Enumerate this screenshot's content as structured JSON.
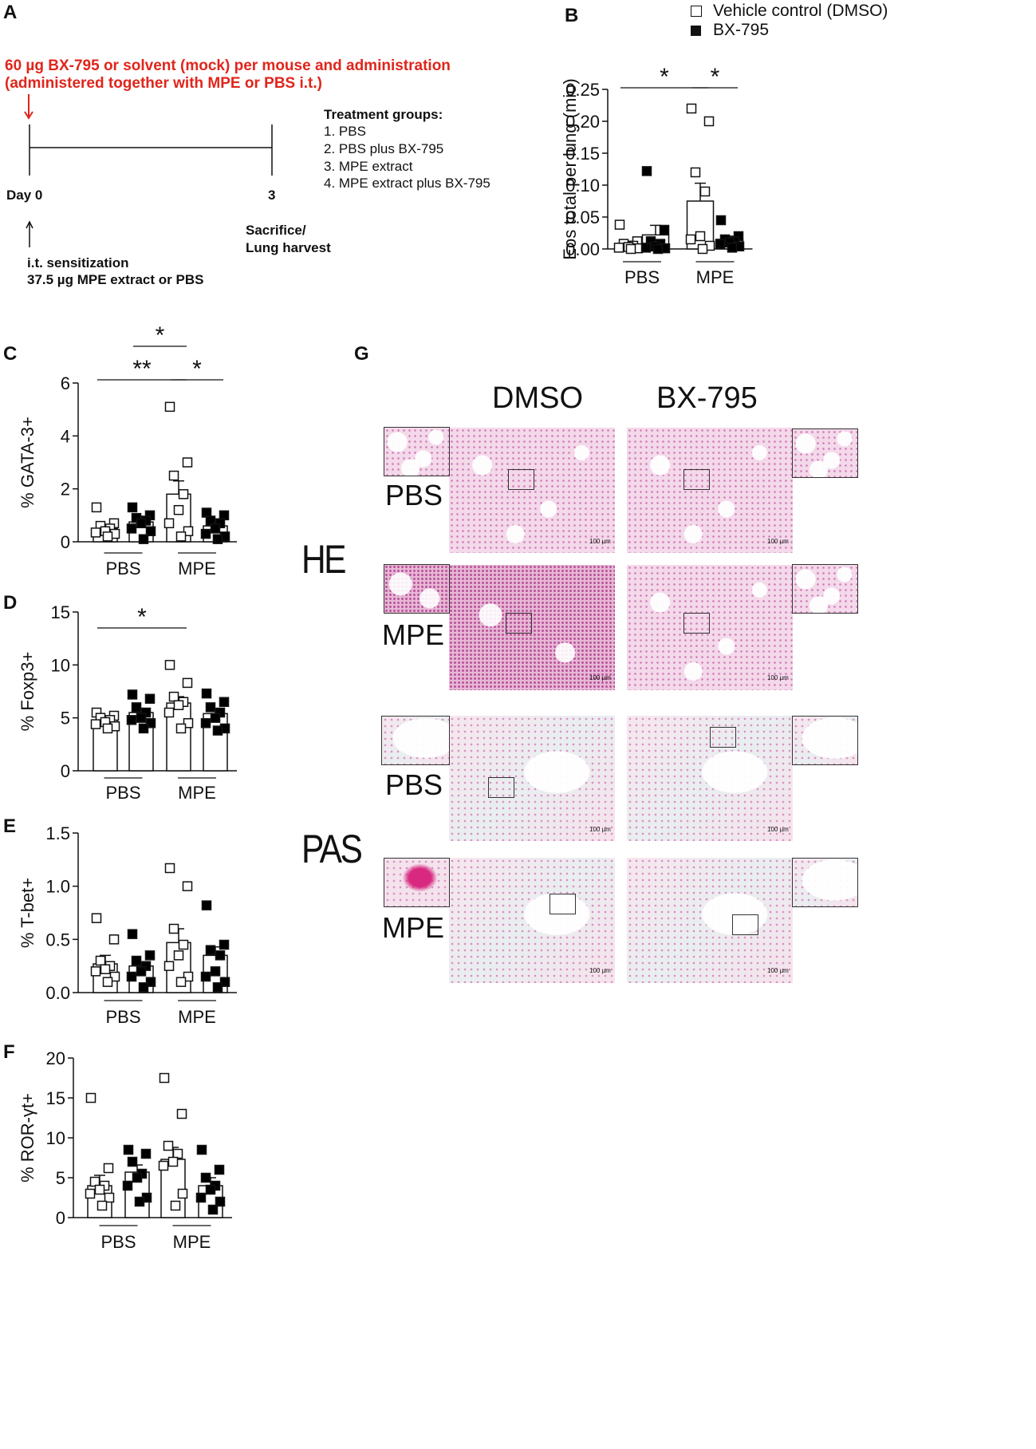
{
  "panel_a": {
    "letter": "A",
    "red_line1": "60 µg BX-795 or solvent (mock) per mouse and administration",
    "red_line2": "(administered together with MPE or PBS i.t.)",
    "day0": "Day 0",
    "day3": "3",
    "sensitization_line1": "i.t. sensitization",
    "sensitization_line2": "37.5 µg MPE extract or PBS",
    "sacrifice_line1": "Sacrifice/",
    "sacrifice_line2": "Lung harvest",
    "groups_title": "Treatment groups:",
    "groups": [
      "1. PBS",
      "2. PBS plus BX-795",
      "3. MPE extract",
      "4. MPE extract plus BX-795"
    ]
  },
  "legend": {
    "vehicle": "Vehicle control (DMSO)",
    "bx": "BX-795"
  },
  "colors": {
    "red": "#e0251b",
    "filled": "#000000",
    "open": "#ffffff"
  },
  "chart_data": [
    {
      "panel": "B",
      "type": "bar",
      "ylabel": "Eos total per lung (mio)",
      "ylim": [
        0,
        0.25
      ],
      "yticks": [
        "0.00",
        "0.05",
        "0.10",
        "0.15",
        "0.20",
        "0.25"
      ],
      "groups": [
        "PBS",
        "MPE"
      ],
      "series": [
        {
          "name": "Vehicle control (DMSO)",
          "values": [
            0.008,
            0.075
          ],
          "sem": [
            0.004,
            0.028
          ]
        },
        {
          "name": "BX-795",
          "values": [
            0.022,
            0.015
          ],
          "sem": [
            0.015,
            0.005
          ]
        }
      ],
      "points": [
        [
          0.038,
          0.012,
          0.008,
          0.005,
          0.003,
          0.002,
          0.001,
          0.0
        ],
        [
          0.122,
          0.03,
          0.012,
          0.008,
          0.004,
          0.002,
          0.001,
          0.0
        ],
        [
          0.22,
          0.2,
          0.12,
          0.09,
          0.02,
          0.015,
          0.005,
          0.0
        ],
        [
          0.045,
          0.02,
          0.015,
          0.012,
          0.01,
          0.008,
          0.004,
          0.002
        ]
      ],
      "significance": [
        {
          "from": 0,
          "to": 2,
          "label": "*"
        },
        {
          "from": 2,
          "to": 3,
          "label": "*"
        }
      ]
    },
    {
      "panel": "C",
      "type": "bar",
      "ylabel": "% GATA-3+",
      "ylim": [
        0,
        6
      ],
      "yticks": [
        "0",
        "2",
        "4",
        "6"
      ],
      "groups": [
        "PBS",
        "MPE"
      ],
      "series": [
        {
          "name": "Vehicle control (DMSO)",
          "values": [
            0.5,
            1.8
          ],
          "sem": [
            0.12,
            0.5
          ]
        },
        {
          "name": "BX-795",
          "values": [
            0.75,
            0.6
          ],
          "sem": [
            0.15,
            0.15
          ]
        }
      ],
      "points": [
        [
          1.3,
          0.7,
          0.6,
          0.5,
          0.4,
          0.35,
          0.3,
          0.2
        ],
        [
          1.3,
          1.0,
          0.9,
          0.8,
          0.7,
          0.5,
          0.4,
          0.1
        ],
        [
          5.1,
          3.0,
          2.5,
          1.8,
          1.2,
          0.7,
          0.4,
          0.2
        ],
        [
          1.1,
          1.0,
          0.8,
          0.7,
          0.5,
          0.3,
          0.2,
          0.1
        ]
      ],
      "significance": [
        {
          "from": 1,
          "to": 2,
          "label": "*"
        },
        {
          "from": 0,
          "to": 2,
          "label": "**"
        },
        {
          "from": 2,
          "to": 3,
          "label": "*"
        }
      ]
    },
    {
      "panel": "D",
      "type": "bar",
      "ylabel": "% Foxp3+",
      "ylim": [
        0,
        15
      ],
      "yticks": [
        "0",
        "5",
        "10",
        "15"
      ],
      "groups": [
        "PBS",
        "MPE"
      ],
      "series": [
        {
          "name": "Vehicle control (DMSO)",
          "values": [
            4.8,
            6.4
          ],
          "sem": [
            0.25,
            0.6
          ]
        },
        {
          "name": "BX-795",
          "values": [
            5.5,
            5.4
          ],
          "sem": [
            0.4,
            0.45
          ]
        }
      ],
      "points": [
        [
          5.5,
          5.2,
          5.0,
          4.8,
          4.6,
          4.4,
          4.2,
          4.0
        ],
        [
          7.2,
          6.8,
          6.0,
          5.5,
          5.0,
          4.8,
          4.5,
          4.0
        ],
        [
          10.0,
          8.3,
          7.0,
          6.5,
          6.2,
          5.5,
          4.5,
          4.0
        ],
        [
          7.3,
          6.5,
          6.0,
          5.5,
          5.0,
          4.5,
          4.0,
          3.8
        ]
      ],
      "significance": [
        {
          "from": 0,
          "to": 2,
          "label": "*"
        }
      ]
    },
    {
      "panel": "E",
      "type": "bar",
      "ylabel": "% T-bet+",
      "ylim": [
        0,
        1.5
      ],
      "yticks": [
        "0.0",
        "0.5",
        "1.0",
        "1.5"
      ],
      "groups": [
        "PBS",
        "MPE"
      ],
      "series": [
        {
          "name": "Vehicle control (DMSO)",
          "values": [
            0.27,
            0.47
          ],
          "sem": [
            0.08,
            0.13
          ]
        },
        {
          "name": "BX-795",
          "values": [
            0.25,
            0.35
          ],
          "sem": [
            0.04,
            0.08
          ]
        }
      ],
      "points": [
        [
          0.7,
          0.5,
          0.3,
          0.25,
          0.22,
          0.2,
          0.15,
          0.1
        ],
        [
          0.55,
          0.35,
          0.3,
          0.25,
          0.2,
          0.15,
          0.1,
          0.05
        ],
        [
          1.17,
          1.0,
          0.6,
          0.45,
          0.35,
          0.25,
          0.15,
          0.1
        ],
        [
          0.82,
          0.45,
          0.4,
          0.35,
          0.2,
          0.15,
          0.1,
          0.05
        ]
      ],
      "significance": []
    },
    {
      "panel": "F",
      "type": "bar",
      "ylabel": "% ROR-γt+",
      "ylim": [
        0,
        20
      ],
      "yticks": [
        "0",
        "5",
        "10",
        "15",
        "20"
      ],
      "groups": [
        "PBS",
        "MPE"
      ],
      "series": [
        {
          "name": "Vehicle control (DMSO)",
          "values": [
            4.0,
            7.3
          ],
          "sem": [
            1.3,
            1.5
          ]
        },
        {
          "name": "BX-795",
          "values": [
            5.7,
            4.0
          ],
          "sem": [
            0.9,
            1.0
          ]
        }
      ],
      "points": [
        [
          15.0,
          6.2,
          4.5,
          4.0,
          3.5,
          3.0,
          2.5,
          1.5
        ],
        [
          8.5,
          8.0,
          7.0,
          5.5,
          5.0,
          4.0,
          2.5,
          2.0
        ],
        [
          17.5,
          13.0,
          9.0,
          8.0,
          7.0,
          6.5,
          3.0,
          1.5
        ],
        [
          8.5,
          6.0,
          5.0,
          4.0,
          3.5,
          2.5,
          2.0,
          1.0
        ]
      ],
      "significance": []
    }
  ],
  "panel_g": {
    "letter": "G",
    "col_dmso": "DMSO",
    "col_bx": "BX-795",
    "stain_he": "HE",
    "stain_pas": "PAS",
    "row_pbs": "PBS",
    "row_mpe": "MPE",
    "scale_bar": "100 µm"
  }
}
